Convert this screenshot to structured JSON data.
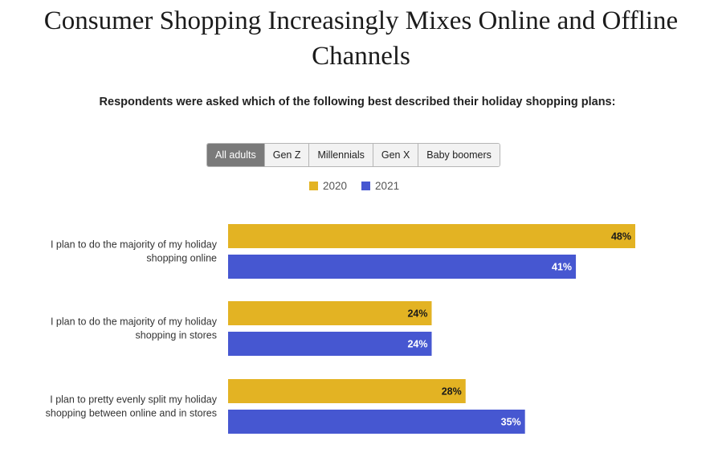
{
  "title": "Consumer Shopping Increasingly Mixes Online and Offline Channels",
  "subtitle": "Respondents were asked which of the following best described their holiday shopping plans:",
  "tabs": [
    {
      "label": "All adults",
      "active": true
    },
    {
      "label": "Gen Z",
      "active": false
    },
    {
      "label": "Millennials",
      "active": false
    },
    {
      "label": "Gen X",
      "active": false
    },
    {
      "label": "Baby boomers",
      "active": false
    }
  ],
  "chart_data": {
    "type": "bar",
    "orientation": "horizontal",
    "categories": [
      [
        "I plan to do the majority of my holiday",
        "shopping online"
      ],
      [
        "I plan to do the majority of my holiday",
        "shopping in stores"
      ],
      [
        "I plan to pretty evenly split my holiday",
        "shopping between online and in stores"
      ]
    ],
    "series": [
      {
        "name": "2020",
        "color": "#e3b323",
        "label_color": "#1a1a1a",
        "values": [
          48,
          24,
          28
        ]
      },
      {
        "name": "2021",
        "color": "#4657d1",
        "label_color": "#ffffff",
        "values": [
          41,
          24,
          35
        ]
      }
    ],
    "value_suffix": "%",
    "xlim": [
      0,
      48
    ],
    "legend_position": "top-center",
    "grid": false
  }
}
